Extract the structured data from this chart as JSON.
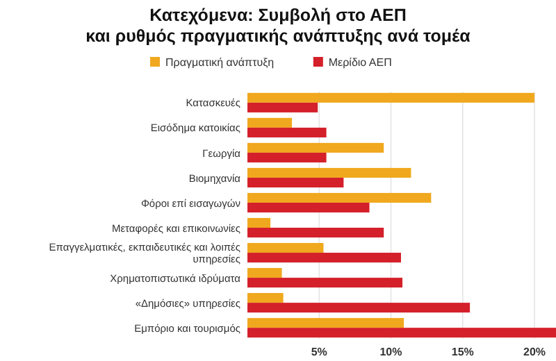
{
  "chart_data": {
    "type": "bar",
    "orientation": "horizontal",
    "title": "Κατεχόμενα: Συμβολή στο ΑΕΠ\nκαι ρυθμός πραγματικής ανάπτυξης ανά τομέα",
    "categories": [
      "Κατασκευές",
      "Εισόδημα κατοικίας",
      "Γεωργία",
      "Βιομηχανία",
      "Φόροι επί εισαγωγών",
      "Μεταφορές και επικοινωνίες",
      "Επαγγελματικές, εκπαιδευτικές και λοιπές υπηρεσίες",
      "Χρηματοπιστωτικά ιδρύματα",
      "«Δημόσιες» υπηρεσίες",
      "Εμπόριο και τουρισμός"
    ],
    "series": [
      {
        "name": "Πραγματική ανάπτυξη",
        "color": "#f0a81e",
        "values": [
          20.0,
          3.1,
          9.5,
          11.4,
          12.8,
          1.6,
          5.3,
          2.4,
          2.5,
          10.9
        ]
      },
      {
        "name": "Μερίδιο ΑΕΠ",
        "color": "#d4202a",
        "values": [
          4.9,
          5.5,
          5.5,
          6.7,
          8.5,
          9.5,
          10.7,
          10.8,
          15.5,
          21.5
        ]
      }
    ],
    "xlim": [
      0,
      21.5
    ],
    "xticks": [
      {
        "value": 5,
        "label": "5%"
      },
      {
        "value": 10,
        "label": "10%"
      },
      {
        "value": 15,
        "label": "15%"
      },
      {
        "value": 20,
        "label": "20%"
      }
    ],
    "grid": "x",
    "legend": "top"
  }
}
